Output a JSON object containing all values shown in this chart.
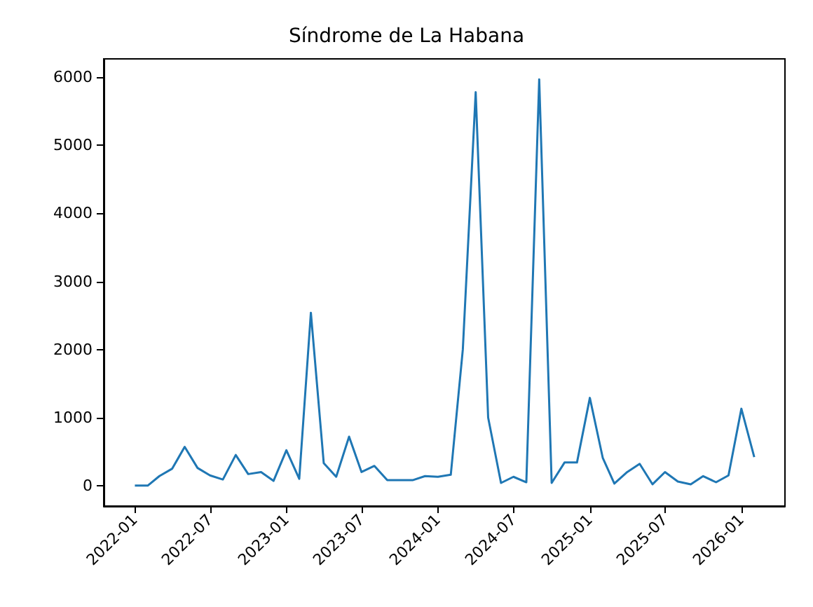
{
  "chart_data": {
    "type": "line",
    "title": "Síndrome de La Habana",
    "x": [
      "2022-01",
      "2022-02",
      "2022-03",
      "2022-04",
      "2022-05",
      "2022-06",
      "2022-07",
      "2022-08",
      "2022-09",
      "2022-10",
      "2022-11",
      "2022-12",
      "2023-01",
      "2023-02",
      "2023-03",
      "2023-04",
      "2023-05",
      "2023-06",
      "2023-07",
      "2023-08",
      "2023-09",
      "2023-10",
      "2023-11",
      "2023-12",
      "2024-01",
      "2024-02",
      "2024-03",
      "2024-04",
      "2024-05",
      "2024-06",
      "2024-07",
      "2024-08",
      "2024-09",
      "2024-10",
      "2024-11",
      "2024-12",
      "2025-01",
      "2025-02",
      "2025-03",
      "2025-04",
      "2025-05",
      "2025-06",
      "2025-07",
      "2025-08",
      "2025-09",
      "2025-10",
      "2025-11",
      "2025-12",
      "2026-01",
      "2026-02"
    ],
    "series": [
      {
        "color": "#1f77b4",
        "values": [
          0,
          0,
          140,
          250,
          570,
          260,
          150,
          90,
          450,
          170,
          200,
          70,
          520,
          100,
          2540,
          330,
          130,
          720,
          200,
          290,
          80,
          80,
          80,
          140,
          130,
          160,
          2000,
          5780,
          1000,
          40,
          130,
          50,
          5970,
          40,
          340,
          340,
          1290,
          410,
          30,
          200,
          320,
          20,
          200,
          60,
          20,
          140,
          50,
          150,
          1130,
          420
        ]
      }
    ],
    "xlim": [
      "2021-10-18",
      "2026-04-16"
    ],
    "xticks": [
      "2022-01",
      "2022-07",
      "2023-01",
      "2023-07",
      "2024-01",
      "2024-07",
      "2025-01",
      "2025-07",
      "2026-01"
    ],
    "ylim": [
      -300,
      6270
    ],
    "yticks": [
      0,
      1000,
      2000,
      3000,
      4000,
      5000,
      6000
    ],
    "grid": false,
    "marker": "none",
    "line_style": "solid"
  }
}
